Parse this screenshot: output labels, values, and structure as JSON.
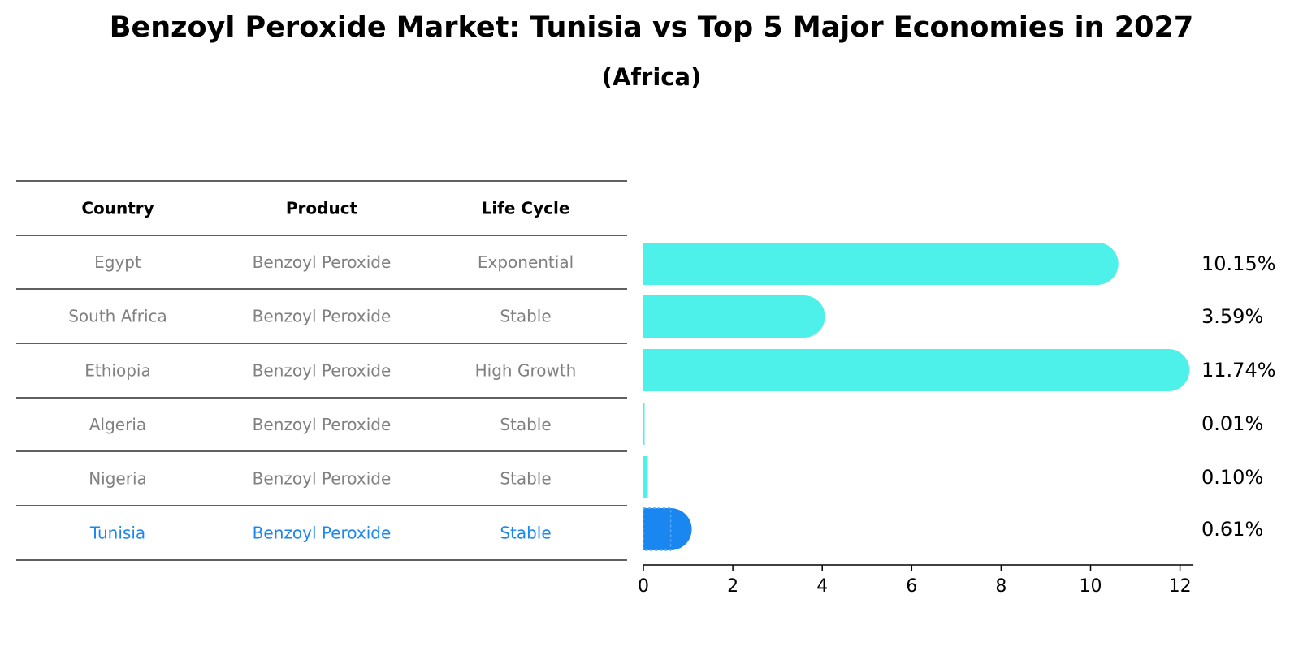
{
  "chart_data": {
    "type": "bar",
    "orientation": "horizontal",
    "title": "Benzoyl Peroxide Market: Tunisia vs Top 5 Major Economies in 2027",
    "subtitle": "(Africa)",
    "table": {
      "columns": [
        "Country",
        "Product",
        "Life Cycle"
      ],
      "rows": [
        {
          "country": "Egypt",
          "product": "Benzoyl Peroxide",
          "life_cycle": "Exponential"
        },
        {
          "country": "South Africa",
          "product": "Benzoyl Peroxide",
          "life_cycle": "Stable"
        },
        {
          "country": "Ethiopia",
          "product": "Benzoyl Peroxide",
          "life_cycle": "High Growth"
        },
        {
          "country": "Algeria",
          "product": "Benzoyl Peroxide",
          "life_cycle": "Stable"
        },
        {
          "country": "Nigeria",
          "product": "Benzoyl Peroxide",
          "life_cycle": "Stable"
        },
        {
          "country": "Tunisia",
          "product": "Benzoyl Peroxide",
          "life_cycle": "Stable"
        }
      ]
    },
    "categories": [
      "Egypt",
      "South Africa",
      "Ethiopia",
      "Algeria",
      "Nigeria",
      "Tunisia"
    ],
    "values": [
      10.15,
      3.59,
      11.74,
      0.01,
      0.1,
      0.61
    ],
    "value_labels": [
      "10.15%",
      "3.59%",
      "11.74%",
      "0.01%",
      "0.10%",
      "0.61%"
    ],
    "highlight": "Tunisia",
    "xlim": [
      0,
      12.3
    ],
    "xticks": [
      0,
      2,
      4,
      6,
      8,
      10,
      12
    ],
    "xlabel": "",
    "ylabel": "",
    "grid": false,
    "colors": {
      "bar": "#4ef0ea",
      "highlight_bar": "#1a87f0",
      "highlight_text": "#1a87f0",
      "body_text": "#808080",
      "header_text": "#000000"
    }
  }
}
